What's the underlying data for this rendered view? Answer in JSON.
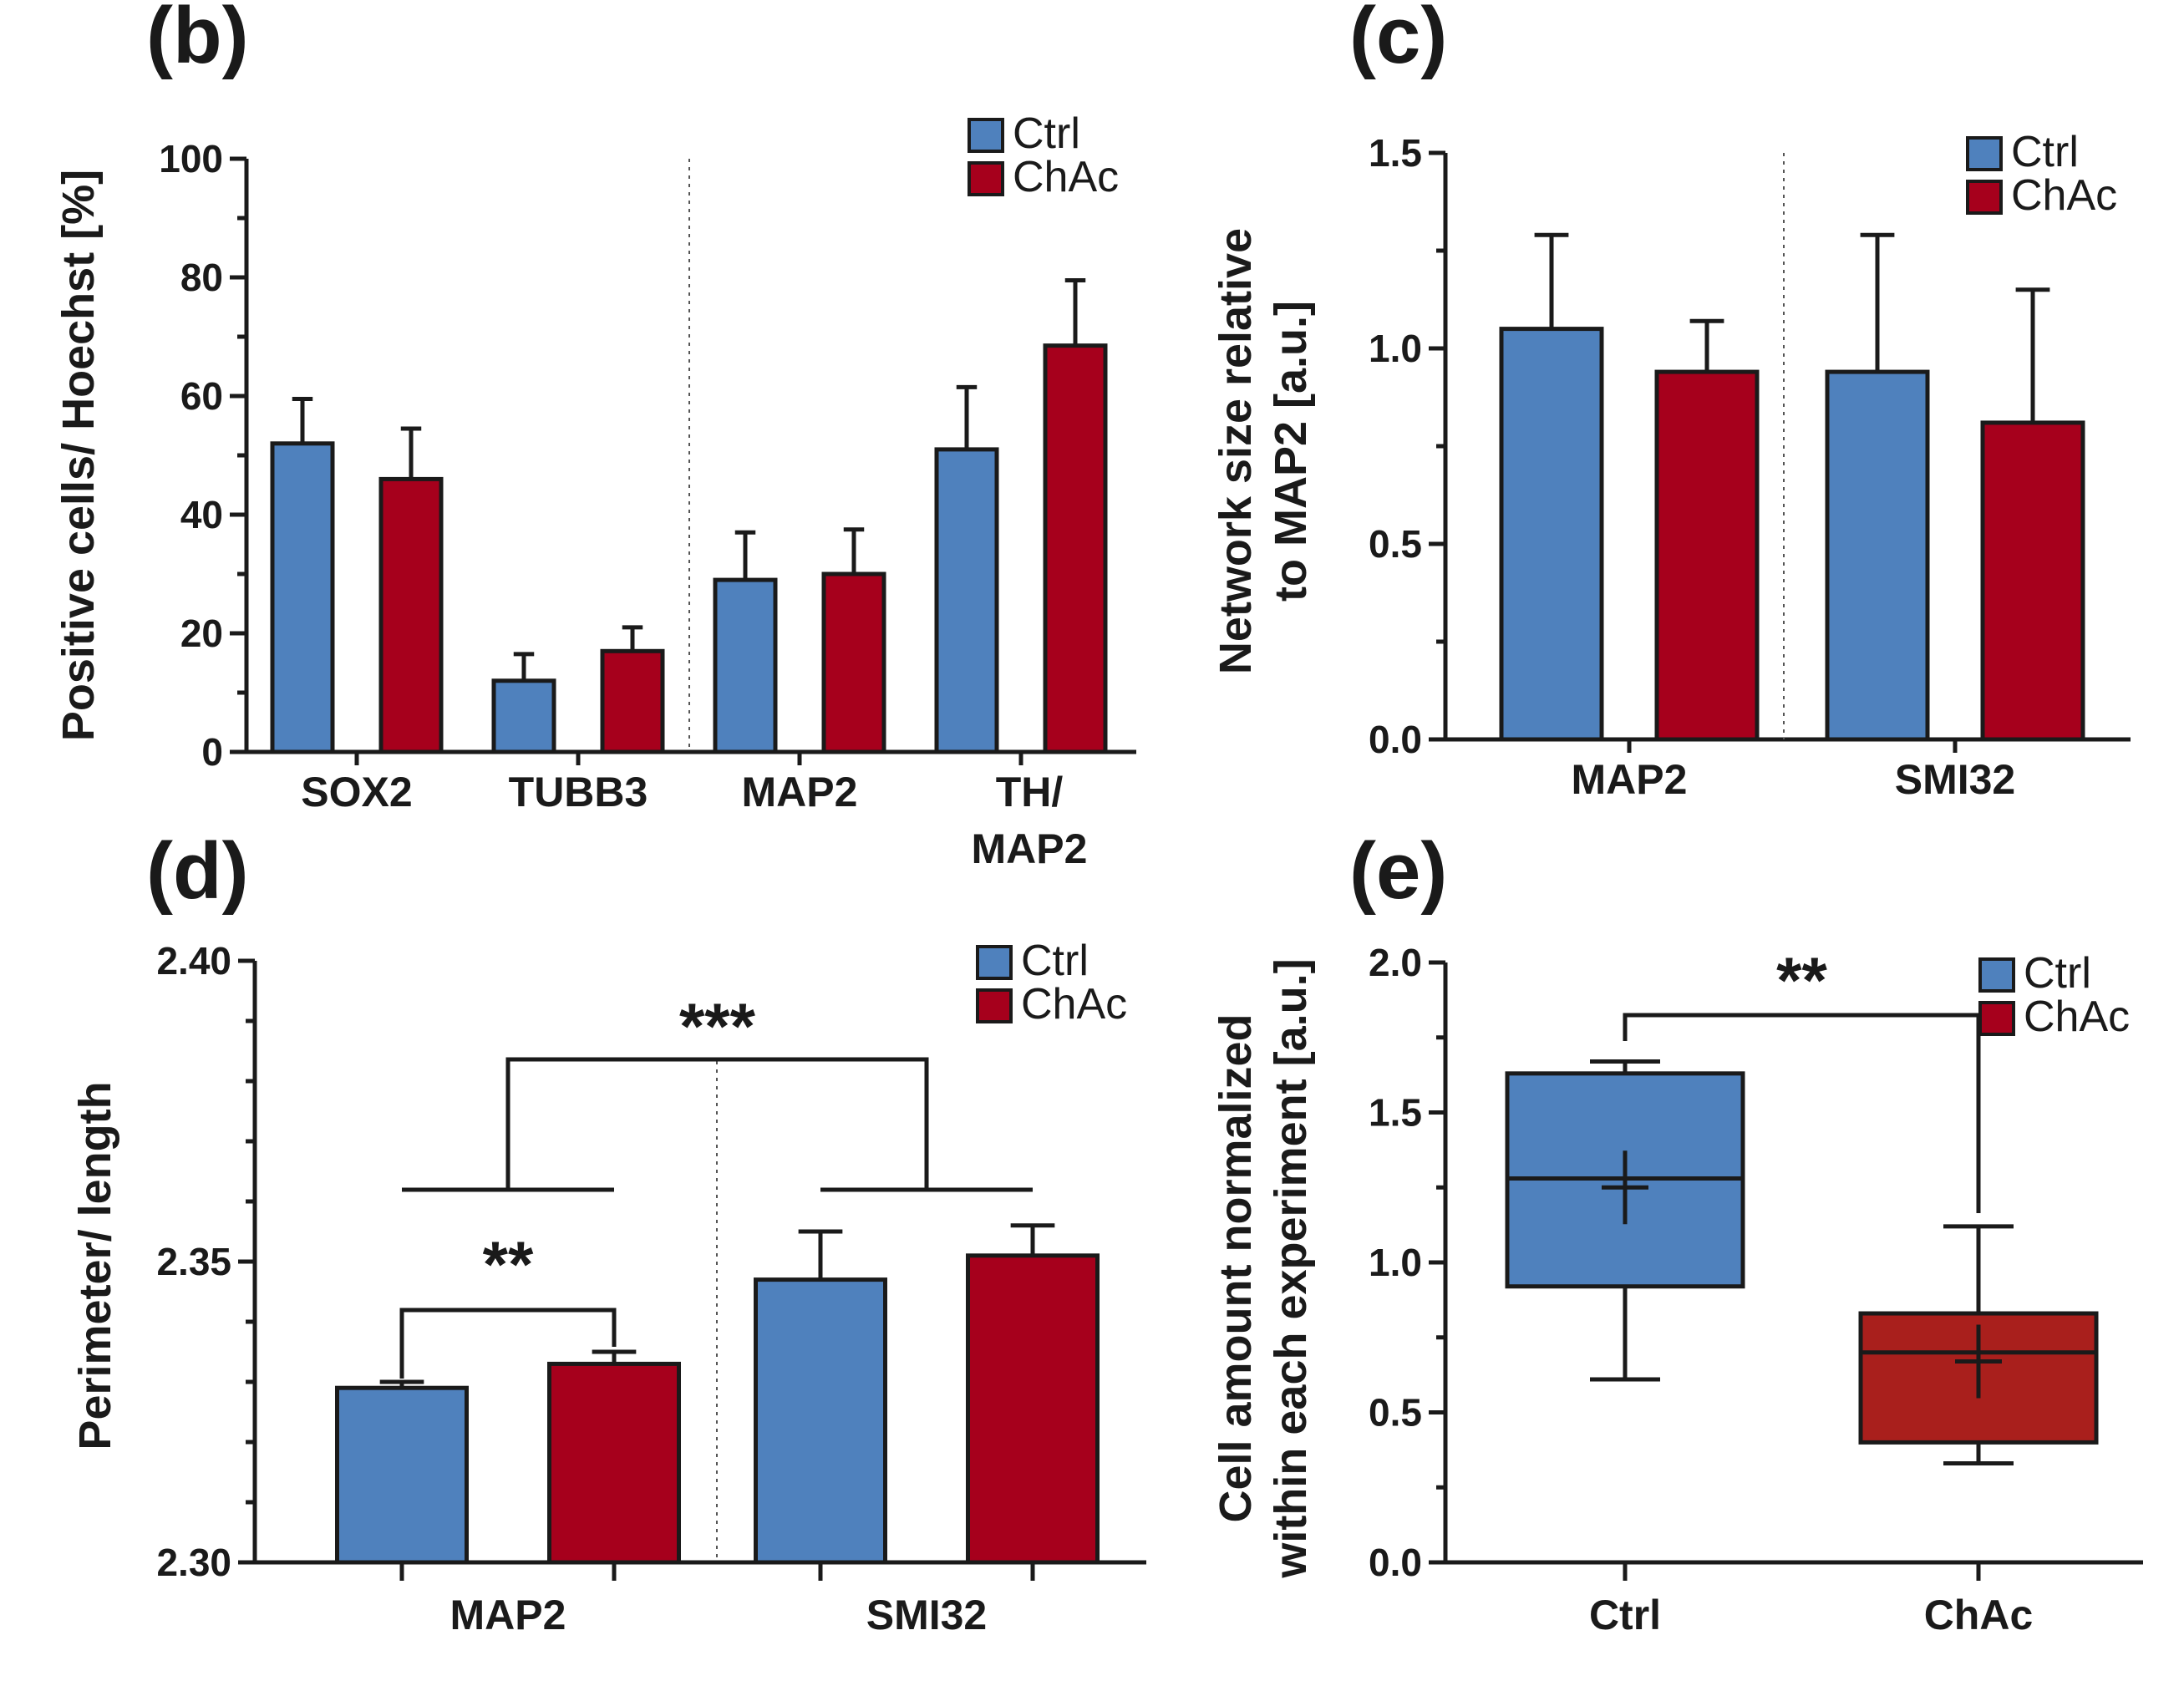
{
  "colors": {
    "ctrl": "#4f81bd",
    "chac": "#a6001c",
    "chac_box": "#a91f1c",
    "axis": "#1a1a1a"
  },
  "chart_data": [
    {
      "panel": "(b)",
      "type": "bar",
      "ylabel": "Positive cells/ Hoechst [%]",
      "ylim": [
        0,
        100
      ],
      "yticks": [
        0,
        20,
        40,
        60,
        80,
        100
      ],
      "categories": [
        "SOX2",
        "TUBB3",
        "MAP2",
        "TH/ MAP2"
      ],
      "category_lines": [
        [
          "SOX2"
        ],
        [
          "TUBB3"
        ],
        [
          "MAP2"
        ],
        [
          "TH/",
          "MAP2"
        ]
      ],
      "legend": [
        "Ctrl",
        "ChAc"
      ],
      "legend_position": "top-right",
      "series": [
        {
          "name": "Ctrl",
          "values": [
            52,
            12,
            29,
            51
          ],
          "errors": [
            7.5,
            4.5,
            8,
            10.5
          ]
        },
        {
          "name": "ChAc",
          "values": [
            46,
            17,
            30,
            68.5
          ],
          "errors": [
            8.5,
            4,
            7.5,
            11
          ]
        }
      ]
    },
    {
      "panel": "(c)",
      "type": "bar",
      "ylabel": [
        "Network size relative",
        "to MAP2 [a.u.]"
      ],
      "ylim": [
        0,
        1.5
      ],
      "yticks": [
        "0.0",
        "0.5",
        "1.0",
        "1.5"
      ],
      "categories": [
        "MAP2",
        "SMI32"
      ],
      "legend": [
        "Ctrl",
        "ChAc"
      ],
      "legend_position": "top-right",
      "series": [
        {
          "name": "Ctrl",
          "values": [
            1.05,
            0.94
          ],
          "errors": [
            0.24,
            0.35
          ]
        },
        {
          "name": "ChAc",
          "values": [
            0.94,
            0.81
          ],
          "errors": [
            0.13,
            0.34
          ]
        }
      ]
    },
    {
      "panel": "(d)",
      "type": "bar",
      "ylabel": "Perimeter/ length",
      "ylim": [
        2.3,
        2.4
      ],
      "yticks": [
        "2.30",
        "2.35",
        "2.40"
      ],
      "categories": [
        "MAP2",
        "SMI32"
      ],
      "legend": [
        "Ctrl",
        "ChAc"
      ],
      "legend_position": "top-right",
      "series": [
        {
          "name": "Ctrl",
          "values": [
            2.329,
            2.347
          ],
          "errors": [
            0.001,
            0.008
          ]
        },
        {
          "name": "ChAc",
          "values": [
            2.333,
            2.351
          ],
          "errors": [
            0.002,
            0.005
          ]
        }
      ],
      "significance": [
        {
          "label": "**",
          "between": "Ctrl vs ChAc within MAP2"
        },
        {
          "label": "***",
          "between": "MAP2 vs SMI32"
        }
      ]
    },
    {
      "panel": "(e)",
      "type": "box",
      "ylabel": [
        "Cell amount normalized",
        "within each experiment [a.u.]"
      ],
      "ylim": [
        0,
        2.0
      ],
      "yticks": [
        "0.0",
        "0.5",
        "1.0",
        "1.5",
        "2.0"
      ],
      "categories": [
        "Ctrl",
        "ChAc"
      ],
      "legend": [
        "Ctrl",
        "ChAc"
      ],
      "legend_position": "top-right",
      "boxes": [
        {
          "name": "Ctrl",
          "min": 0.61,
          "q1": 0.92,
          "median": 1.28,
          "q3": 1.63,
          "max": 1.67,
          "mean": 1.25
        },
        {
          "name": "ChAc",
          "min": 0.33,
          "q1": 0.4,
          "median": 0.7,
          "q3": 0.83,
          "max": 1.12,
          "mean": 0.67
        }
      ],
      "significance": [
        {
          "label": "**",
          "between": "Ctrl vs ChAc"
        }
      ]
    }
  ]
}
